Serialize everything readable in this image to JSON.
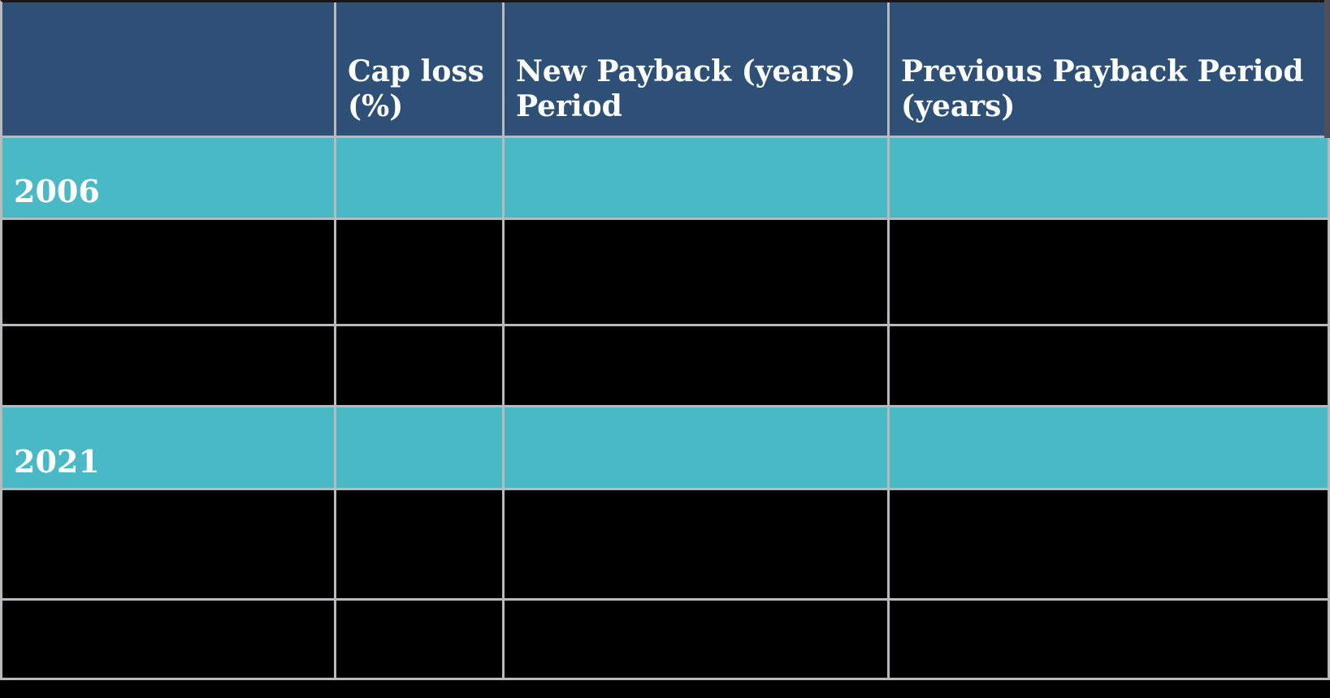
{
  "colors": {
    "header_bg": "#2E5077",
    "year_band_bg": "#49B9C5",
    "redacted_cell_bg": "#000000",
    "gridline": "#B8BABC",
    "page_bg": "#000000",
    "text": "#FFFFFF"
  },
  "table": {
    "header": [
      {
        "label": ""
      },
      {
        "label": "Cap loss\n(%)"
      },
      {
        "label": "New Payback (years)\nPeriod"
      },
      {
        "label": "Previous Payback Period\n(years)"
      }
    ],
    "rows": [
      {
        "kind": "year-band",
        "label": "2006"
      },
      {
        "kind": "redacted",
        "label": ""
      },
      {
        "kind": "redacted",
        "label": ""
      },
      {
        "kind": "year-band",
        "label": "2021"
      },
      {
        "kind": "redacted",
        "label": ""
      },
      {
        "kind": "redacted",
        "label": ""
      }
    ]
  },
  "chart_data": {
    "type": "table",
    "title": "",
    "columns": [
      "",
      "Cap loss (%)",
      "New Payback (years) Period",
      "Previous Payback Period (years)"
    ],
    "rows": [
      {
        "label": "2006",
        "row_style": "teal-year-band",
        "values": [
          "",
          "",
          ""
        ]
      },
      {
        "label": "",
        "row_style": "redacted-black",
        "values": [
          "",
          "",
          ""
        ]
      },
      {
        "label": "",
        "row_style": "redacted-black",
        "values": [
          "",
          "",
          ""
        ]
      },
      {
        "label": "2021",
        "row_style": "teal-year-band",
        "values": [
          "",
          "",
          ""
        ]
      },
      {
        "label": "",
        "row_style": "redacted-black",
        "values": [
          "",
          "",
          ""
        ]
      },
      {
        "label": "",
        "row_style": "redacted-black",
        "values": [
          "",
          "",
          ""
        ]
      }
    ],
    "layout_hints": {
      "header_bg": "#2E5077",
      "year_band_bg": "#49B9C5",
      "data_rows_redacted": true,
      "gridlines": true
    }
  }
}
